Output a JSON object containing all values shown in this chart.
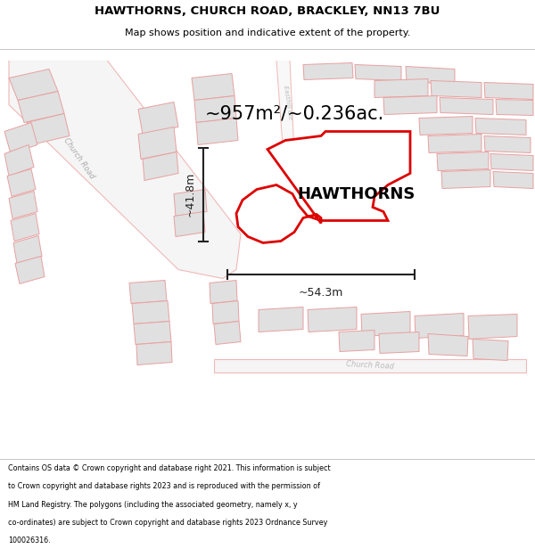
{
  "title_line1": "HAWTHORNS, CHURCH ROAD, BRACKLEY, NN13 7BU",
  "title_line2": "Map shows position and indicative extent of the property.",
  "area_text": "~957m²/~0.236ac.",
  "property_label": "HAWTHORNS",
  "dim_vertical": "~41.8m",
  "dim_horizontal": "~54.3m",
  "footer_lines": [
    "Contains OS data © Crown copyright and database right 2021. This information is subject",
    "to Crown copyright and database rights 2023 and is reproduced with the permission of",
    "HM Land Registry. The polygons (including the associated geometry, namely x, y",
    "co-ordinates) are subject to Crown copyright and database rights 2023 Ordnance Survey",
    "100026316."
  ],
  "bg_color": "#ffffff",
  "map_bg": "#ffffff",
  "plot_fill": "#ffffff",
  "plot_edge": "#dd0000",
  "build_fill": "#e0e0e0",
  "build_edge": "#e8a0a0",
  "road_outline": "#f0b8b8",
  "road_fill": "#ffffff",
  "dim_color": "#222222",
  "title_color": "#000000",
  "footer_color": "#000000",
  "sep_color": "#bbbbbb"
}
